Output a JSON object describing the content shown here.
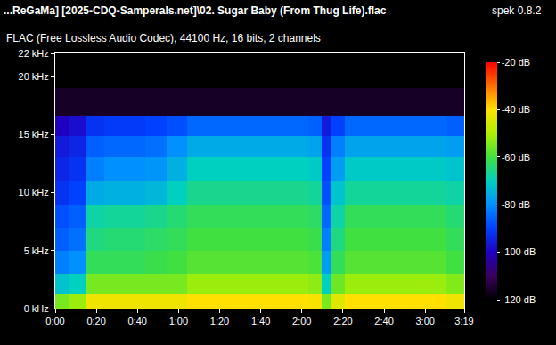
{
  "chart_data": {
    "type": "heatmap",
    "title": "...ReGaMa] [2025-CDQ-Samperals.net]\\02. Sugar Baby (From Thug Life).flac",
    "subtitle": "FLAC (Free Lossless Audio Codec), 44100 Hz, 16 bits, 2 channels",
    "annotations": [
      "spek 0.8.2"
    ],
    "x": [
      3.5,
      10.5,
      19,
      29,
      39,
      49,
      59,
      69,
      79,
      89,
      99,
      109,
      119,
      127,
      132,
      137,
      145,
      155,
      165,
      175,
      185,
      195
    ],
    "y": [
      0.5,
      2,
      4,
      6,
      8,
      10,
      12,
      14,
      15.75,
      17.5,
      20.5
    ],
    "z": [
      [
        -55,
        -52,
        -42,
        -42,
        -42,
        -42,
        -42,
        -40,
        -40,
        -40,
        -40,
        -40,
        -40,
        -41,
        -55,
        -44,
        -40,
        -40,
        -40,
        -40,
        -40,
        -42
      ],
      [
        -72,
        -70,
        -55,
        -55,
        -55,
        -55,
        -55,
        -52,
        -52,
        -52,
        -52,
        -52,
        -52,
        -53,
        -70,
        -56,
        -52,
        -52,
        -52,
        -52,
        -52,
        -54
      ],
      [
        -82,
        -80,
        -62,
        -62,
        -62,
        -61,
        -60,
        -58,
        -58,
        -58,
        -58,
        -58,
        -58,
        -59,
        -78,
        -62,
        -58,
        -58,
        -58,
        -58,
        -58,
        -60
      ],
      [
        -86,
        -84,
        -65,
        -64,
        -64,
        -63,
        -62,
        -60,
        -60,
        -60,
        -60,
        -60,
        -60,
        -61,
        -82,
        -65,
        -60,
        -60,
        -60,
        -60,
        -60,
        -62
      ],
      [
        -88,
        -86,
        -68,
        -67,
        -67,
        -66,
        -64,
        -62,
        -62,
        -62,
        -62,
        -62,
        -62,
        -63,
        -85,
        -68,
        -62,
        -62,
        -62,
        -62,
        -62,
        -64
      ],
      [
        -92,
        -90,
        -76,
        -75,
        -75,
        -74,
        -70,
        -66,
        -66,
        -66,
        -66,
        -66,
        -66,
        -67,
        -88,
        -72,
        -67,
        -67,
        -67,
        -67,
        -67,
        -68
      ],
      [
        -94,
        -92,
        -82,
        -80,
        -80,
        -79,
        -75,
        -70,
        -70,
        -70,
        -70,
        -70,
        -70,
        -71,
        -90,
        -78,
        -71,
        -71,
        -71,
        -71,
        -71,
        -72
      ],
      [
        -96,
        -94,
        -86,
        -85,
        -85,
        -84,
        -80,
        -76,
        -76,
        -76,
        -76,
        -76,
        -76,
        -77,
        -92,
        -82,
        -77,
        -77,
        -77,
        -77,
        -77,
        -78
      ],
      [
        -100,
        -98,
        -92,
        -91,
        -91,
        -90,
        -88,
        -85,
        -85,
        -85,
        -85,
        -85,
        -85,
        -86,
        -96,
        -90,
        -85,
        -85,
        -85,
        -85,
        -85,
        -86
      ],
      [
        -116,
        -116,
        -116,
        -116,
        -116,
        -116,
        -116,
        -116,
        -116,
        -116,
        -116,
        -116,
        -116,
        -116,
        -116,
        -116,
        -116,
        -116,
        -116,
        -116,
        -116,
        -116
      ],
      [
        -120,
        -120,
        -120,
        -120,
        -120,
        -120,
        -120,
        -120,
        -120,
        -120,
        -120,
        -120,
        -120,
        -120,
        -120,
        -120,
        -120,
        -120,
        -120,
        -120,
        -120,
        -120
      ]
    ],
    "xlim": [
      0,
      199
    ],
    "xticks": [
      {
        "value": 0,
        "label": "0:00"
      },
      {
        "value": 20,
        "label": "0:20"
      },
      {
        "value": 40,
        "label": "0:40"
      },
      {
        "value": 60,
        "label": "1:00"
      },
      {
        "value": 80,
        "label": "1:20"
      },
      {
        "value": 100,
        "label": "1:40"
      },
      {
        "value": 120,
        "label": "2:00"
      },
      {
        "value": 140,
        "label": "2:20"
      },
      {
        "value": 160,
        "label": "2:40"
      },
      {
        "value": 180,
        "label": "3:00"
      },
      {
        "value": 199,
        "label": "3:19"
      }
    ],
    "ylim": [
      0,
      22
    ],
    "yticks": [
      {
        "value": 0,
        "label": "0 kHz"
      },
      {
        "value": 5,
        "label": "5 kHz"
      },
      {
        "value": 10,
        "label": "10 kHz"
      },
      {
        "value": 15,
        "label": "15 kHz"
      },
      {
        "value": 20,
        "label": "20 kHz"
      },
      {
        "value": 22,
        "label": "22 kHz"
      }
    ],
    "colorbar": {
      "range": [
        -120,
        -20
      ],
      "ticks": [
        {
          "value": -20,
          "label": "-20 dB"
        },
        {
          "value": -40,
          "label": "-40 dB"
        },
        {
          "value": -60,
          "label": "-60 dB"
        },
        {
          "value": -80,
          "label": "-80 dB"
        },
        {
          "value": -100,
          "label": "-100 dB"
        },
        {
          "value": -120,
          "label": "-120 dB"
        }
      ]
    }
  }
}
